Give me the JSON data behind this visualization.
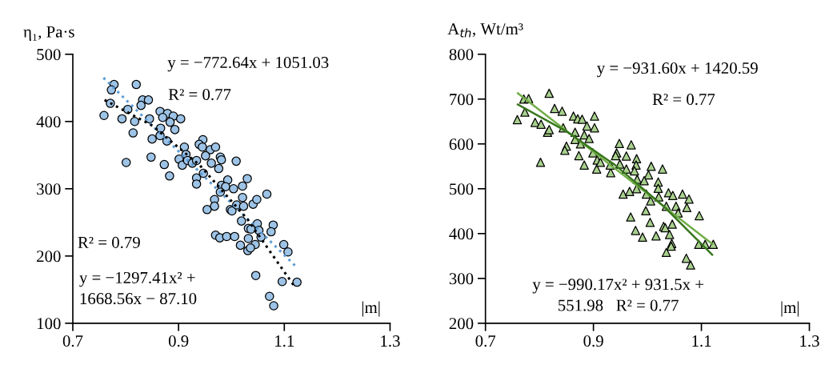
{
  "chart_data": [
    {
      "type": "scatter",
      "xlabel": "|m|",
      "ylabel": "η₁, Pa·s",
      "xlim": [
        0.7,
        1.3
      ],
      "xticks": [
        0.7,
        0.9,
        1.1,
        1.3
      ],
      "ylim": [
        100,
        500
      ],
      "yticks": [
        100,
        200,
        300,
        400,
        500
      ],
      "grid": false,
      "annotations": [
        "y = −772.64x + 1051.03",
        "R² = 0.77",
        "R² = 0.79",
        "y = −1297.41x² +\n1668.56x − 87.10"
      ],
      "series": [
        {
          "color": "#9dc3e6",
          "marker": "circle",
          "x": [
            0.778,
            0.82,
            0.773,
            0.771,
            0.759,
            0.832,
            0.843,
            0.829,
            0.804,
            0.793,
            0.817,
            0.814,
            0.845,
            0.865,
            0.879,
            0.89,
            0.87,
            0.884,
            0.904,
            0.866,
            0.893,
            0.85,
            0.865,
            0.878,
            0.801,
            0.848,
            0.873,
            0.883,
            0.946,
            0.939,
            0.945,
            0.96,
            0.97,
            0.911,
            0.951,
            0.979,
            0.981,
            1.009,
            0.901,
            0.907,
            0.914,
            0.917,
            0.926,
            0.934,
            0.962,
            0.976,
            0.934,
            0.934,
            0.947,
            0.993,
            1.03,
            0.981,
            0.989,
            1.004,
            1.021,
            0.979,
            1.067,
            1.021,
            0.968,
            0.968,
            0.954,
            0.998,
            1.001,
            1.01,
            1.023,
            1.041,
            1.048,
            1.019,
            1.049,
            1.032,
            1.037,
            1.052,
            1.079,
            1.075,
            1.056,
            0.97,
            0.978,
            0.991,
            1.006,
            1.017,
            1.032,
            1.045,
            1.031,
            1.036,
            1.099,
            1.107,
            1.046,
            1.096,
            1.124,
            1.072,
            1.08
          ],
          "values": [
            455,
            455,
            447,
            427,
            409,
            432,
            432,
            424,
            418,
            404,
            400,
            383,
            404,
            415,
            412,
            408,
            406,
            399,
            404,
            390,
            388,
            374,
            379,
            371,
            339,
            347,
            336,
            319,
            373,
            366,
            362,
            358,
            362,
            362,
            349,
            347,
            343,
            341,
            344,
            335,
            351,
            342,
            338,
            342,
            338,
            330,
            316,
            307,
            323,
            313,
            315,
            305,
            303,
            300,
            304,
            295,
            292,
            287,
            284,
            274,
            269,
            269,
            267,
            276,
            274,
            277,
            284,
            252,
            248,
            241,
            240,
            238,
            246,
            236,
            228,
            231,
            227,
            229,
            229,
            216,
            226,
            217,
            208,
            212,
            217,
            206,
            171,
            162,
            161,
            140,
            126
          ]
        },
        {
          "type": "line",
          "color": "#5b9bd5",
          "line_style": "dotted",
          "x": [
            0.758,
            1.12
          ],
          "values": [
            465,
            186
          ]
        },
        {
          "type": "line",
          "color": "#000000",
          "line_style": "dotted",
          "x": [
            0.76,
            0.85,
            0.94,
            1.03,
            1.12
          ],
          "values": [
            432,
            394,
            335,
            255,
            154
          ]
        }
      ]
    },
    {
      "type": "scatter",
      "xlabel": "|m|",
      "ylabel": "A$_{th}$, Wt/m³",
      "xlim": [
        0.7,
        1.3
      ],
      "xticks": [
        0.7,
        0.9,
        1.1,
        1.3
      ],
      "ylim": [
        200,
        800
      ],
      "yticks": [
        200,
        300,
        400,
        500,
        600,
        700,
        800
      ],
      "grid": false,
      "annotations": [
        "y = −931.60x + 1420.59",
        "R² = 0.77",
        "y = −990.17x² + 931.5x +\n551.98   R² = 0.77"
      ],
      "series": [
        {
          "color": "#a9d18e",
          "marker": "triangle",
          "x": [
            0.759,
            0.773,
            0.771,
            0.78,
            0.792,
            0.803,
            0.815,
            0.818,
            0.802,
            0.818,
            0.828,
            0.842,
            0.844,
            0.85,
            0.847,
            0.863,
            0.871,
            0.879,
            0.902,
            0.866,
            0.888,
            0.902,
            0.883,
            0.892,
            0.866,
            0.876,
            0.873,
            0.883,
            0.899,
            0.907,
            0.906,
            0.913,
            0.932,
            0.931,
            0.948,
            0.97,
            0.943,
            0.941,
            0.961,
            0.98,
            0.979,
            0.949,
            0.961,
            0.976,
            1.007,
            1.028,
            1.002,
            0.981,
            0.994,
            1.02,
            1.02,
            0.955,
            0.967,
            0.98,
            0.998,
            1.006,
            1.021,
            1.039,
            1.047,
            1.065,
            1.077,
            1.073,
            1.053,
            1.057,
            1.035,
            0.969,
            0.997,
            1.005,
            0.978,
            0.991,
            1.016,
            1.03,
            1.033,
            1.046,
            1.041,
            1.045,
            1.044,
            1.035,
            1.096,
            1.095,
            1.107,
            1.122,
            1.072,
            1.08
          ],
          "values": [
            654,
            671,
            700,
            701,
            648,
            644,
            626,
            632,
            559,
            713,
            679,
            673,
            636,
            595,
            586,
            662,
            656,
            655,
            662,
            626,
            640,
            636,
            620,
            612,
            610,
            600,
            574,
            553,
            580,
            564,
            544,
            559,
            536,
            553,
            601,
            598,
            580,
            574,
            573,
            567,
            553,
            555,
            544,
            540,
            550,
            544,
            531,
            521,
            518,
            515,
            501,
            488,
            494,
            500,
            488,
            473,
            482,
            491,
            485,
            488,
            477,
            458,
            461,
            446,
            461,
            437,
            451,
            425,
            407,
            392,
            395,
            416,
            413,
            421,
            398,
            378,
            372,
            358,
            440,
            376,
            376,
            376,
            345,
            330
          ]
        },
        {
          "type": "line",
          "color": "#70ad47",
          "line_style": "solid",
          "x": [
            0.76,
            1.12
          ],
          "values": [
            713,
            377
          ]
        },
        {
          "type": "line",
          "color": "#38761d",
          "line_style": "solid",
          "x": [
            0.76,
            0.85,
            0.94,
            1.03,
            1.12
          ],
          "values": [
            688,
            628,
            553,
            461,
            353
          ]
        }
      ]
    }
  ]
}
